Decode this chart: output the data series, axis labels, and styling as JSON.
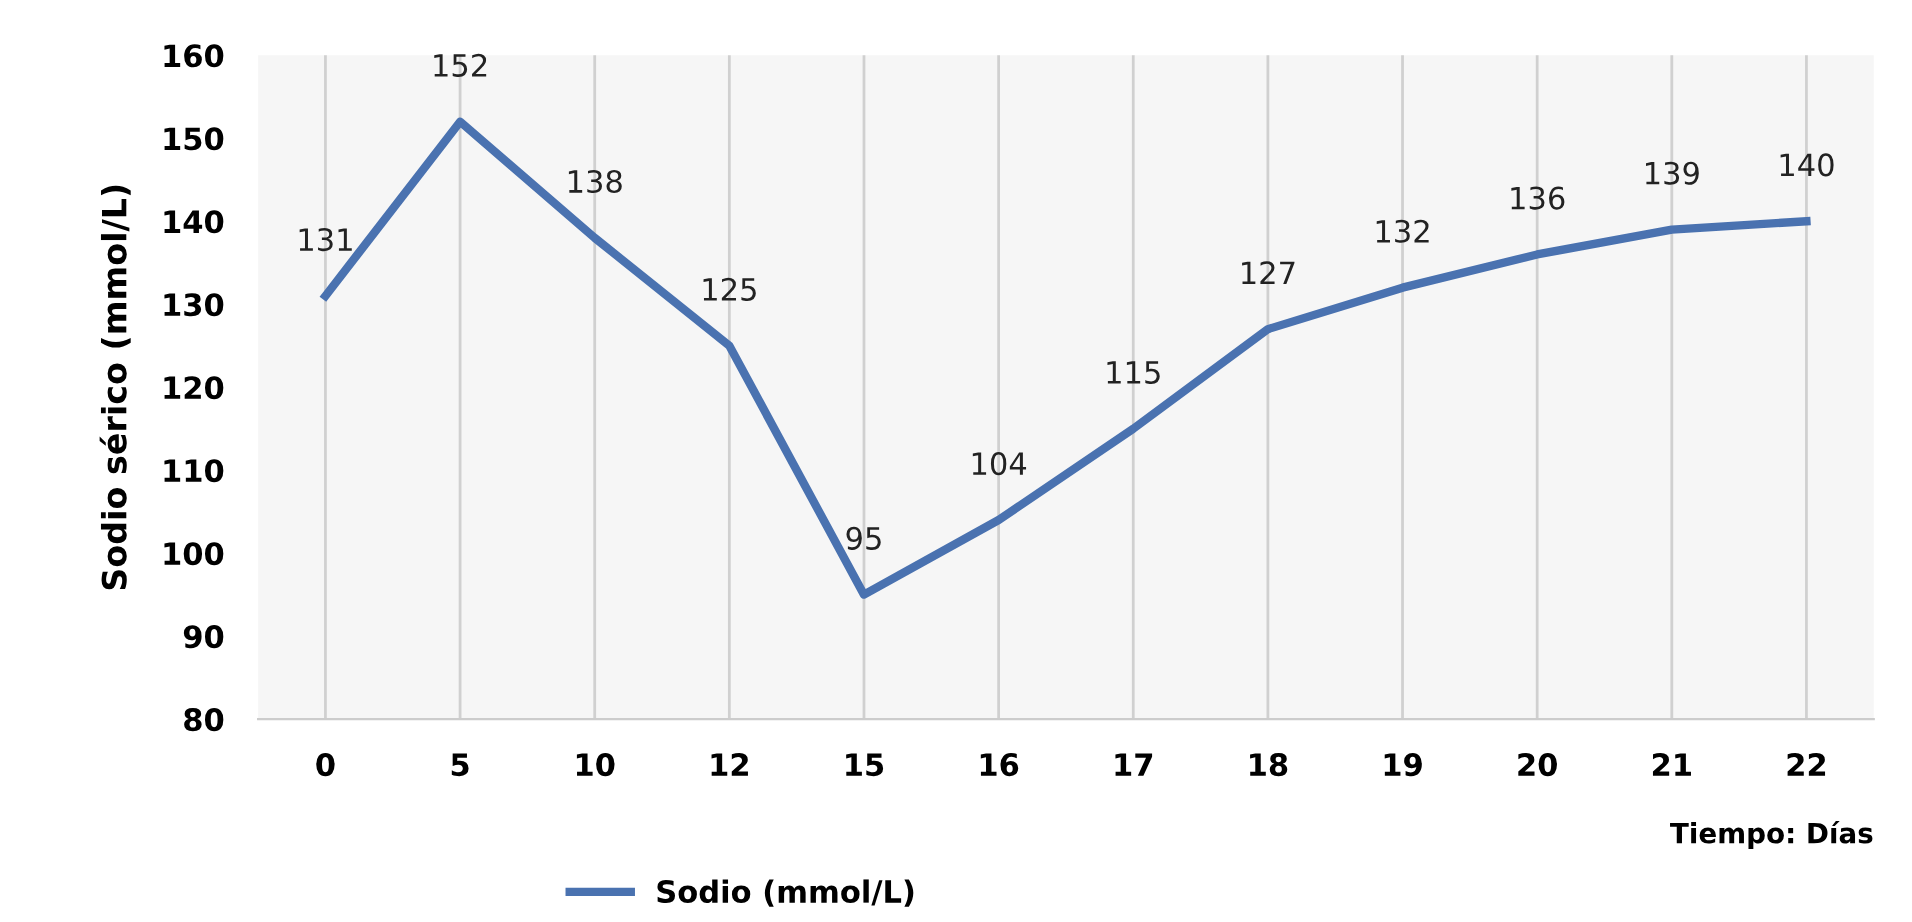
{
  "chart_data": {
    "type": "line",
    "xlabel": "Tiempo: Días",
    "ylabel": "Sodio sérico (mmol/L)",
    "categories": [
      "0",
      "5",
      "10",
      "12",
      "15",
      "16",
      "17",
      "18",
      "19",
      "20",
      "21",
      "22"
    ],
    "series": [
      {
        "name": "Sodio (mmol/L)",
        "color": "#4a72b0",
        "values": [
          131,
          152,
          138,
          125,
          95,
          104,
          115,
          127,
          132,
          136,
          139,
          140
        ]
      }
    ],
    "ylim": [
      80,
      160
    ],
    "yticks": [
      80,
      90,
      100,
      110,
      120,
      130,
      140,
      150,
      160
    ],
    "grid": "x",
    "legend": "bottom",
    "data_labels": true,
    "marker": "none",
    "line_style": "solid"
  }
}
